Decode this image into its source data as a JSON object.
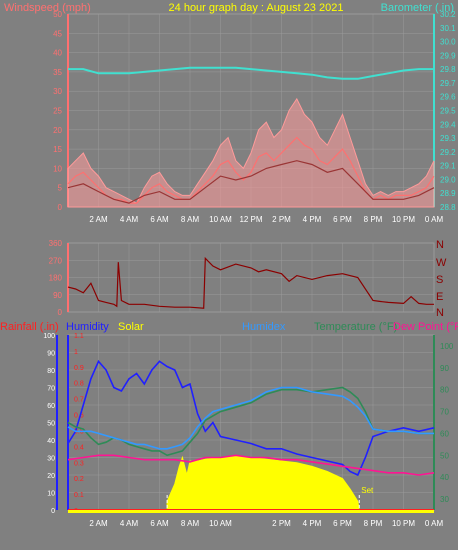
{
  "header": {
    "left_label": "Windspeed (mph)",
    "title": "24 hour graph day : August 23 2021",
    "right_label": "Barometer (.in)"
  },
  "colors": {
    "background": "#808080",
    "grid": "#9a9a9a",
    "wind_speed": "#ff7070",
    "wind_gust": "#ff9a9a",
    "wind_avg": "#9a3535",
    "barometer": "#40e0d0",
    "direction": "#8b0000",
    "rain": "#ff2020",
    "humidity": "#2020ff",
    "solar": "#ffff00",
    "humidex": "#3399ff",
    "temperature": "#2e8b57",
    "dew_point": "#ff1493",
    "title": "#ffff00"
  },
  "chart_data": [
    {
      "type": "line",
      "name": "wind",
      "x_ticks": [
        "2 AM",
        "4 AM",
        "6 AM",
        "8 AM",
        "10 AM",
        "12 PM",
        "2 PM",
        "4 PM",
        "6 PM",
        "8 PM",
        "10 PM",
        "0 AM"
      ],
      "x_range": [
        0,
        24
      ],
      "left_axis": {
        "label": "Windspeed (mph)",
        "range": [
          0,
          50
        ],
        "ticks": [
          "0",
          "5",
          "10",
          "15",
          "20",
          "25",
          "30",
          "35",
          "40",
          "45",
          "50"
        ]
      },
      "right_axis": {
        "label": "Barometer (.in)",
        "range": [
          28.8,
          30.2
        ],
        "ticks": [
          "28.8",
          "28.9",
          "29.0",
          "29.1",
          "29.2",
          "29.3",
          "29.4",
          "29.5",
          "29.6",
          "29.7",
          "29.8",
          "29.9",
          "30.0",
          "30.1",
          "30.2"
        ]
      },
      "series": [
        {
          "key": "gust",
          "axis": "left",
          "x": [
            0,
            0.5,
            1,
            1.5,
            2,
            2.5,
            3,
            3.5,
            4,
            4.5,
            5,
            5.5,
            6,
            6.5,
            7,
            7.5,
            8,
            8.5,
            9,
            9.5,
            10,
            10.5,
            11,
            11.5,
            12,
            12.5,
            13,
            13.5,
            14,
            14.5,
            15,
            15.5,
            16,
            16.5,
            17,
            17.5,
            18,
            18.5,
            19,
            19.5,
            20,
            20.5,
            21,
            21.5,
            22,
            22.5,
            23,
            23.5,
            24
          ],
          "y": [
            10,
            12,
            14,
            10,
            8,
            5,
            4,
            3,
            2,
            1,
            5,
            8,
            9,
            6,
            4,
            3,
            3,
            6,
            9,
            12,
            16,
            18,
            12,
            10,
            14,
            20,
            22,
            18,
            20,
            25,
            28,
            24,
            22,
            18,
            16,
            20,
            24,
            18,
            12,
            6,
            3,
            4,
            3,
            4,
            4,
            5,
            6,
            8,
            12
          ]
        },
        {
          "key": "speed",
          "axis": "left",
          "x": [
            0,
            0.5,
            1,
            1.5,
            2,
            2.5,
            3,
            3.5,
            4,
            4.5,
            5,
            5.5,
            6,
            6.5,
            7,
            7.5,
            8,
            8.5,
            9,
            9.5,
            10,
            10.5,
            11,
            11.5,
            12,
            12.5,
            13,
            13.5,
            14,
            14.5,
            15,
            15.5,
            16,
            16.5,
            17,
            17.5,
            18,
            18.5,
            19,
            19.5,
            20,
            20.5,
            21,
            21.5,
            22,
            22.5,
            23,
            23.5,
            24
          ],
          "y": [
            6,
            8,
            9,
            7,
            5,
            3,
            2,
            2,
            1,
            1,
            3,
            5,
            6,
            4,
            3,
            2,
            2,
            4,
            6,
            8,
            11,
            12,
            9,
            7,
            9,
            13,
            14,
            12,
            14,
            16,
            18,
            16,
            15,
            12,
            11,
            13,
            15,
            12,
            8,
            4,
            2,
            3,
            2,
            3,
            3,
            3,
            4,
            5,
            8
          ]
        },
        {
          "key": "avg",
          "axis": "left",
          "x": [
            0,
            1,
            2,
            3,
            4,
            5,
            6,
            7,
            8,
            9,
            10,
            11,
            12,
            13,
            14,
            15,
            16,
            17,
            18,
            19,
            20,
            21,
            22,
            23,
            24
          ],
          "y": [
            5,
            6,
            4,
            2,
            1,
            3,
            4,
            2,
            2,
            5,
            8,
            7,
            8,
            10,
            11,
            12,
            11,
            9,
            10,
            6,
            2,
            2,
            2,
            3,
            5
          ]
        },
        {
          "key": "barometer",
          "axis": "right",
          "x": [
            0,
            1,
            2,
            3,
            4,
            5,
            6,
            7,
            8,
            9,
            10,
            11,
            12,
            13,
            14,
            15,
            16,
            17,
            18,
            19,
            20,
            21,
            22,
            23,
            24
          ],
          "y": [
            29.8,
            29.8,
            29.77,
            29.77,
            29.77,
            29.78,
            29.79,
            29.8,
            29.81,
            29.81,
            29.81,
            29.81,
            29.8,
            29.79,
            29.78,
            29.77,
            29.76,
            29.74,
            29.73,
            29.73,
            29.75,
            29.77,
            29.79,
            29.8,
            29.8
          ]
        }
      ]
    },
    {
      "type": "line",
      "name": "wind-direction",
      "x_range": [
        0,
        24
      ],
      "y_axis": {
        "range": [
          0,
          360
        ],
        "ticks": [
          "0",
          "90",
          "180",
          "270",
          "360"
        ]
      },
      "compass_labels": [
        "N",
        "W",
        "S",
        "E",
        "N"
      ],
      "series": [
        {
          "key": "direction",
          "x": [
            0,
            0.5,
            1,
            1.5,
            2,
            2.5,
            3,
            3.2,
            3.3,
            3.5,
            4,
            5,
            6,
            7,
            8,
            8.9,
            9,
            9.5,
            10,
            11,
            12,
            12.5,
            13,
            14,
            14.5,
            15,
            16,
            17,
            18,
            19,
            20,
            20.5,
            21,
            22,
            22.5,
            23,
            23.5,
            24
          ],
          "y": [
            130,
            120,
            100,
            150,
            60,
            50,
            40,
            30,
            260,
            60,
            40,
            40,
            30,
            25,
            25,
            20,
            280,
            240,
            220,
            250,
            230,
            210,
            220,
            200,
            160,
            190,
            170,
            190,
            200,
            180,
            60,
            55,
            50,
            45,
            80,
            45,
            40,
            40
          ]
        }
      ]
    },
    {
      "type": "line",
      "name": "temperature-humidity",
      "x_range": [
        0,
        24
      ],
      "rain_axis": {
        "label": "Rainfall (.in)",
        "range": [
          0,
          1.1
        ],
        "ticks": [
          "0",
          "0.1",
          "0.2",
          "0.3",
          "0.4",
          "0.5",
          "0.6",
          "0.7",
          "0.8",
          "0.9",
          "1",
          "1.1"
        ]
      },
      "humidity_axis": {
        "label": "Humidity",
        "range": [
          0,
          100
        ],
        "ticks": [
          "0",
          "10",
          "20",
          "30",
          "40",
          "50",
          "60",
          "70",
          "80",
          "90",
          "100"
        ]
      },
      "temp_axis": {
        "label": "Temperature (°F)",
        "range": [
          25,
          105
        ],
        "ticks": [
          "30",
          "40",
          "50",
          "60",
          "70",
          "80",
          "90",
          "100"
        ]
      },
      "legend": [
        "Rainfall (.in)",
        "Humidity",
        "Solar",
        "Humidex",
        "Temperature (°F)",
        "Dew Point (°F"
      ],
      "sunrise_sunset": {
        "rise": 6.5,
        "set": 19.1,
        "set_label": "Set"
      },
      "series": [
        {
          "key": "humidity",
          "axis": "humidity",
          "x": [
            0,
            0.5,
            1,
            1.5,
            2,
            2.5,
            3,
            3.5,
            4,
            4.5,
            5,
            5.5,
            6,
            6.5,
            7,
            7.5,
            8,
            8.5,
            9,
            9.5,
            10,
            11,
            12,
            13,
            14,
            15,
            16,
            17,
            18,
            18.5,
            19,
            19.5,
            20,
            21,
            22,
            23,
            24
          ],
          "y": [
            38,
            45,
            60,
            75,
            85,
            80,
            70,
            68,
            75,
            78,
            72,
            80,
            85,
            82,
            80,
            70,
            72,
            55,
            45,
            50,
            42,
            40,
            38,
            35,
            35,
            32,
            30,
            28,
            26,
            22,
            20,
            30,
            42,
            45,
            47,
            45,
            47
          ]
        },
        {
          "key": "temperature",
          "axis": "temp",
          "x": [
            0,
            0.5,
            1,
            1.5,
            2,
            2.5,
            3,
            3.5,
            4,
            4.5,
            5,
            5.5,
            6,
            6.5,
            7,
            7.5,
            8,
            8.5,
            9,
            9.5,
            10,
            11,
            12,
            13,
            14,
            15,
            16,
            17,
            18,
            18.5,
            19,
            19.5,
            20,
            21,
            22,
            23,
            24
          ],
          "y": [
            65,
            63,
            62,
            58,
            55,
            56,
            58,
            57,
            55,
            54,
            53,
            52,
            52,
            50,
            51,
            52,
            56,
            60,
            66,
            68,
            70,
            72,
            74,
            78,
            80,
            80,
            79,
            80,
            81,
            79,
            76,
            70,
            62,
            61,
            61,
            60,
            60
          ]
        },
        {
          "key": "humidex",
          "axis": "temp",
          "x": [
            0,
            0.5,
            1,
            1.5,
            2,
            2.5,
            3,
            3.5,
            4,
            4.5,
            5,
            5.5,
            6,
            6.5,
            7,
            7.5,
            8,
            8.5,
            9,
            9.5,
            10,
            11,
            12,
            13,
            14,
            15,
            16,
            17,
            18,
            18.5,
            19,
            19.5,
            20,
            21,
            22,
            23,
            24
          ],
          "y": [
            63,
            61,
            61,
            61,
            60,
            59,
            58,
            57,
            56,
            55,
            55,
            54,
            53,
            53,
            54,
            55,
            58,
            63,
            67,
            70,
            71,
            73,
            75,
            79,
            81,
            81,
            79,
            78,
            77,
            75,
            72,
            68,
            62,
            61,
            61,
            60,
            60
          ]
        },
        {
          "key": "dew_point",
          "axis": "temp",
          "x": [
            0,
            1,
            2,
            3,
            4,
            5,
            6,
            7,
            8,
            9,
            10,
            11,
            12,
            13,
            14,
            15,
            16,
            17,
            18,
            19,
            20,
            21,
            22,
            23,
            24
          ],
          "y": [
            48,
            49,
            50,
            50,
            49,
            48,
            48,
            48,
            47,
            49,
            49,
            50,
            49,
            49,
            48,
            48,
            47,
            46,
            45,
            44,
            43,
            42,
            42,
            41,
            42
          ]
        },
        {
          "key": "solar",
          "axis": "humidity",
          "x": [
            6.5,
            7,
            7.3,
            7.5,
            7.8,
            8,
            8.5,
            9,
            10,
            11,
            12,
            13,
            14,
            15,
            16,
            17,
            18,
            18.5,
            19,
            19.1
          ],
          "y": [
            5,
            15,
            25,
            30,
            20,
            28,
            28,
            29,
            30,
            31,
            30,
            29,
            28,
            27,
            25,
            22,
            18,
            12,
            5,
            0
          ]
        }
      ]
    }
  ]
}
